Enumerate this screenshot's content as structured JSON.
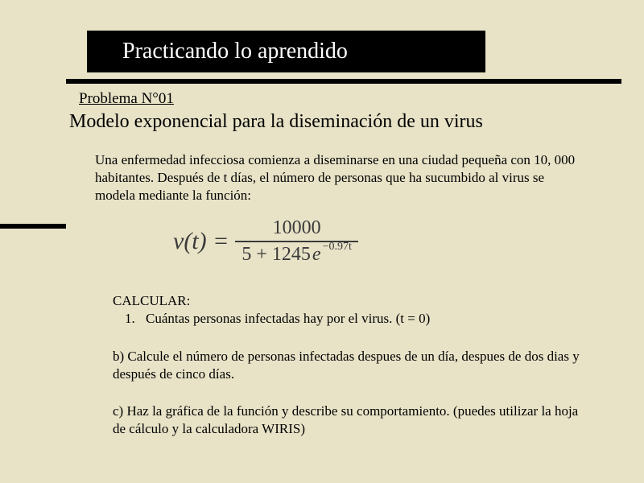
{
  "colors": {
    "background": "#e8e3c7",
    "title_box_bg": "#000000",
    "title_text": "#ffffff",
    "rule": "#000000",
    "body_text": "#000000",
    "formula_text": "#3a3a3a"
  },
  "title": "Practicando lo aprendido",
  "problem_label": "Problema N°01",
  "subtitle": "Modelo exponencial para la diseminación de un virus",
  "intro": "Una enfermedad infecciosa comienza a diseminarse en una ciudad pequeña con 10, 000 habitantes. Después de t días, el número de personas que ha sucumbido al virus se modela mediante la función:",
  "formula": {
    "lhs": "v(t) =",
    "numerator": "10000",
    "den_left": "5 + 1245",
    "e_symbol": "e",
    "exponent": "−0.97t"
  },
  "calc_heading": "CALCULAR:",
  "items": {
    "a_num": "1.",
    "a_text": "Cuántas personas infectadas hay por el virus. (t = 0)",
    "b_text": "b) Calcule el número de personas infectadas despues de un día, despues de dos dias y después de cinco días.",
    "c_text": "c) Haz la gráfica de  la función y describe su comportamiento. (puedes utilizar la hoja de cálculo y la calculadora WIRIS)"
  }
}
